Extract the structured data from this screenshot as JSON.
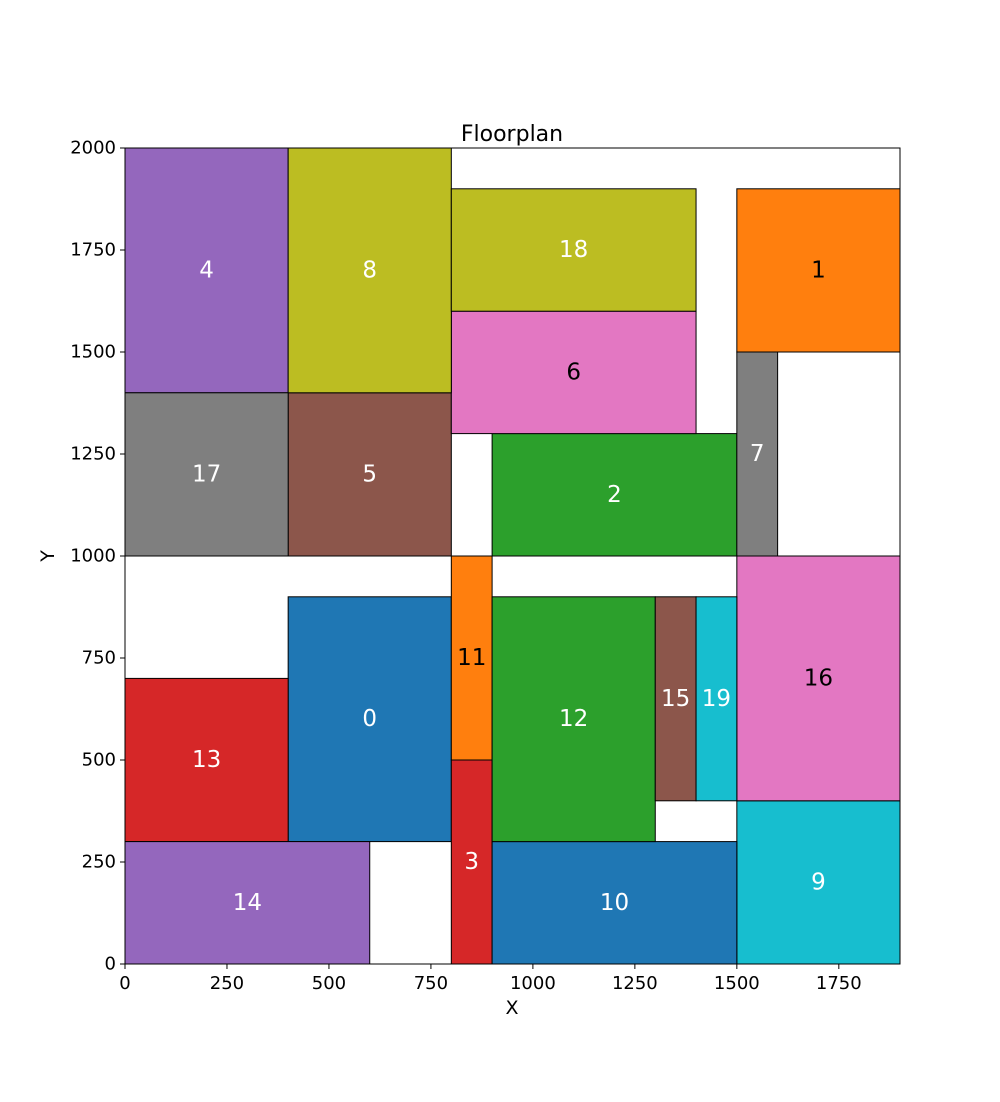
{
  "chart_data": {
    "type": "floorplan",
    "title": "Floorplan",
    "xlabel": "X",
    "ylabel": "Y",
    "xlim": [
      0,
      1900
    ],
    "ylim": [
      0,
      2000
    ],
    "xticks": [
      0,
      250,
      500,
      750,
      1000,
      1250,
      1500,
      1750
    ],
    "yticks": [
      0,
      250,
      500,
      750,
      1000,
      1250,
      1500,
      1750,
      2000
    ],
    "rooms": [
      {
        "id": "0",
        "x0": 400,
        "y0": 300,
        "x1": 800,
        "y1": 900,
        "color": "#1f77b4",
        "label_color": "#ffffff"
      },
      {
        "id": "1",
        "x0": 1500,
        "y0": 1500,
        "x1": 1900,
        "y1": 1900,
        "color": "#ff7f0e",
        "label_color": "#000000"
      },
      {
        "id": "2",
        "x0": 900,
        "y0": 1000,
        "x1": 1500,
        "y1": 1300,
        "color": "#2ca02c",
        "label_color": "#ffffff"
      },
      {
        "id": "3",
        "x0": 800,
        "y0": 0,
        "x1": 900,
        "y1": 500,
        "color": "#d62728",
        "label_color": "#ffffff"
      },
      {
        "id": "4",
        "x0": 0,
        "y0": 1400,
        "x1": 400,
        "y1": 2000,
        "color": "#9467bd",
        "label_color": "#ffffff"
      },
      {
        "id": "5",
        "x0": 400,
        "y0": 1000,
        "x1": 800,
        "y1": 1400,
        "color": "#8c564b",
        "label_color": "#ffffff"
      },
      {
        "id": "6",
        "x0": 800,
        "y0": 1300,
        "x1": 1400,
        "y1": 1600,
        "color": "#e377c2",
        "label_color": "#000000"
      },
      {
        "id": "7",
        "x0": 1500,
        "y0": 1000,
        "x1": 1600,
        "y1": 1500,
        "color": "#7f7f7f",
        "label_color": "#ffffff"
      },
      {
        "id": "8",
        "x0": 400,
        "y0": 1400,
        "x1": 800,
        "y1": 2000,
        "color": "#bcbd22",
        "label_color": "#ffffff"
      },
      {
        "id": "9",
        "x0": 1500,
        "y0": 0,
        "x1": 1900,
        "y1": 400,
        "color": "#17becf",
        "label_color": "#ffffff"
      },
      {
        "id": "10",
        "x0": 900,
        "y0": 0,
        "x1": 1500,
        "y1": 300,
        "color": "#1f77b4",
        "label_color": "#ffffff"
      },
      {
        "id": "11",
        "x0": 800,
        "y0": 500,
        "x1": 900,
        "y1": 1000,
        "color": "#ff7f0e",
        "label_color": "#000000"
      },
      {
        "id": "12",
        "x0": 900,
        "y0": 300,
        "x1": 1300,
        "y1": 900,
        "color": "#2ca02c",
        "label_color": "#ffffff"
      },
      {
        "id": "13",
        "x0": 0,
        "y0": 300,
        "x1": 400,
        "y1": 700,
        "color": "#d62728",
        "label_color": "#ffffff"
      },
      {
        "id": "14",
        "x0": 0,
        "y0": 0,
        "x1": 600,
        "y1": 300,
        "color": "#9467bd",
        "label_color": "#ffffff"
      },
      {
        "id": "15",
        "x0": 1300,
        "y0": 400,
        "x1": 1400,
        "y1": 900,
        "color": "#8c564b",
        "label_color": "#ffffff"
      },
      {
        "id": "16",
        "x0": 1500,
        "y0": 400,
        "x1": 1900,
        "y1": 1000,
        "color": "#e377c2",
        "label_color": "#000000"
      },
      {
        "id": "17",
        "x0": 0,
        "y0": 1000,
        "x1": 400,
        "y1": 1400,
        "color": "#7f7f7f",
        "label_color": "#ffffff"
      },
      {
        "id": "18",
        "x0": 800,
        "y0": 1600,
        "x1": 1400,
        "y1": 1900,
        "color": "#bcbd22",
        "label_color": "#ffffff"
      },
      {
        "id": "19",
        "x0": 1400,
        "y0": 400,
        "x1": 1500,
        "y1": 900,
        "color": "#17becf",
        "label_color": "#ffffff"
      }
    ]
  }
}
